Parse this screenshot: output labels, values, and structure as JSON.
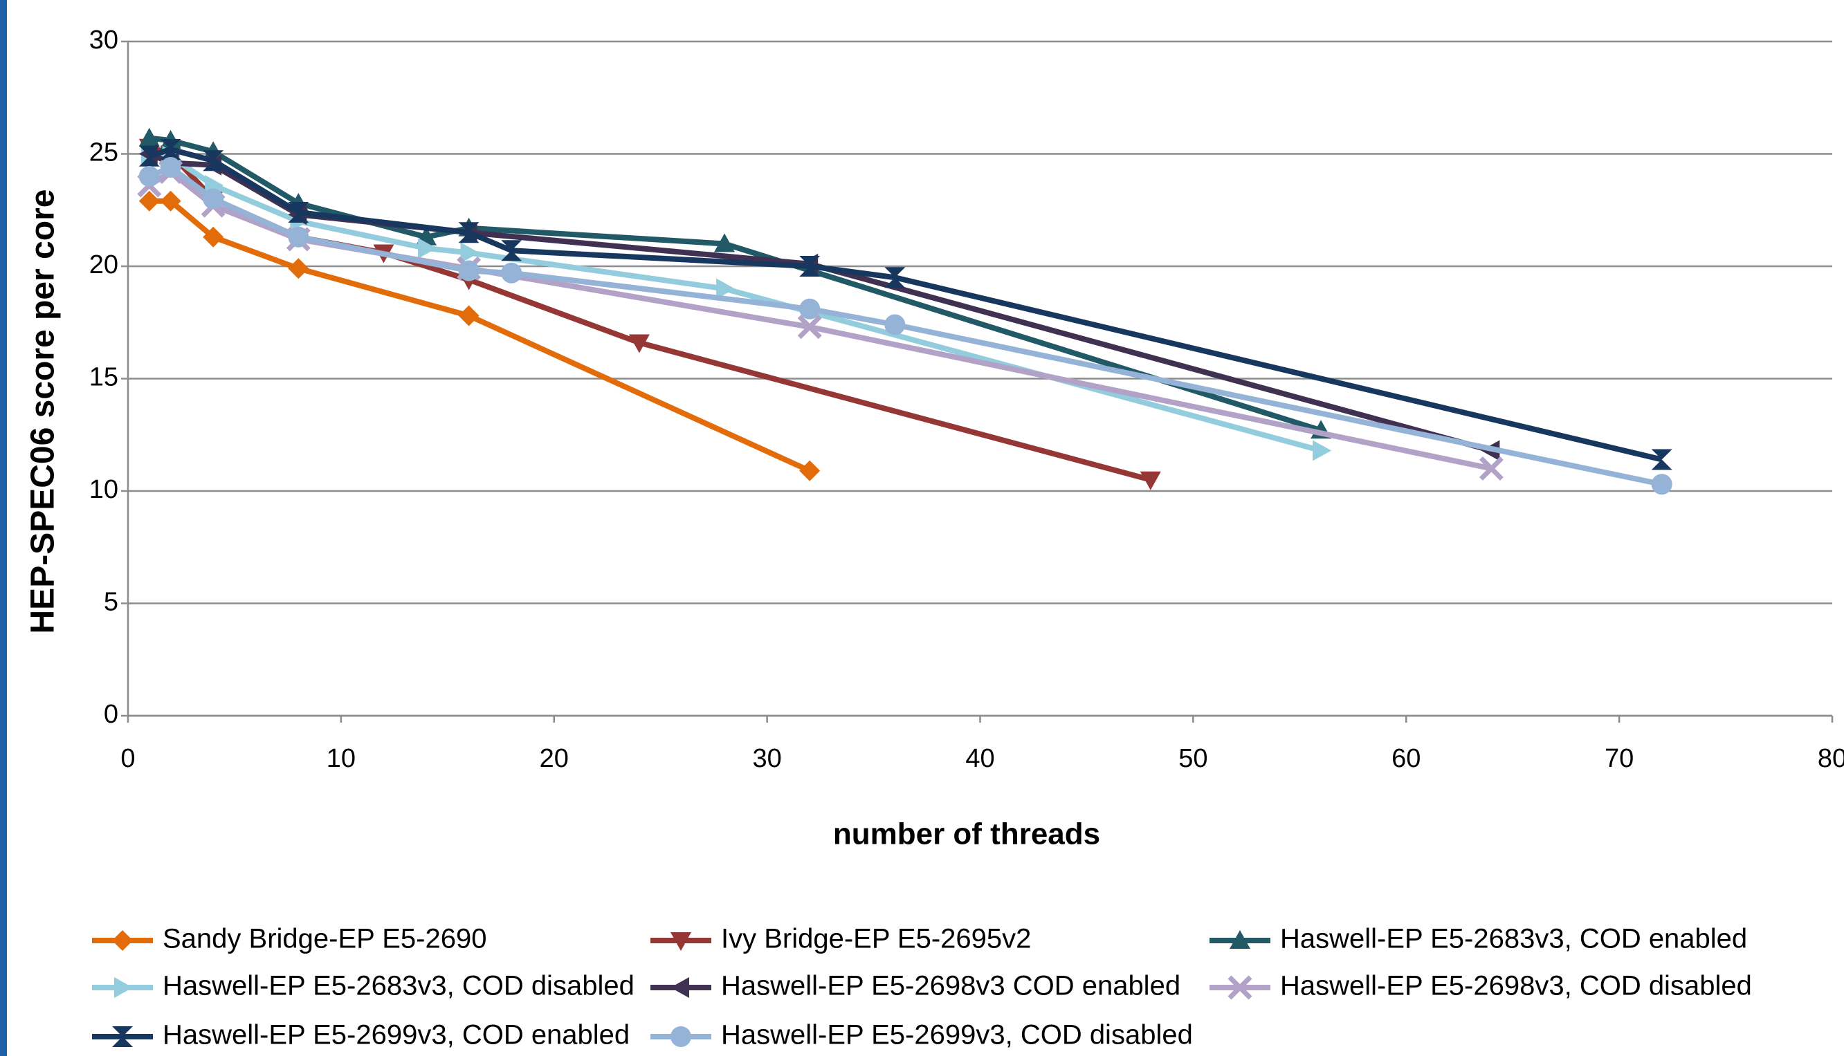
{
  "chart_data": {
    "type": "line",
    "xlabel": "number of threads",
    "ylabel": "HEP-SPEC06 score per core",
    "xlim": [
      0,
      80
    ],
    "xticks": [
      0,
      10,
      20,
      30,
      40,
      50,
      60,
      70,
      80
    ],
    "ylim": [
      0,
      30
    ],
    "yticks": [
      0,
      5,
      10,
      15,
      20,
      25,
      30
    ],
    "grid": true,
    "legend": "bottom",
    "series": [
      {
        "name": "Sandy Bridge-EP E5-2690",
        "color": "#e36c0a",
        "marker": "diamond",
        "x": [
          1,
          2,
          4,
          8,
          16,
          32
        ],
        "values": [
          22.9,
          22.9,
          21.3,
          19.9,
          17.8,
          10.9
        ]
      },
      {
        "name": "Ivy Bridge-EP E5-2695v2",
        "color": "#953735",
        "marker": "triangle-down",
        "x": [
          1,
          2,
          4,
          8,
          12,
          16,
          24,
          48
        ],
        "values": [
          25.3,
          25.0,
          23.0,
          21.3,
          20.6,
          19.4,
          16.6,
          10.5
        ]
      },
      {
        "name": "Haswell-EP E5-2683v3, COD enabled",
        "color": "#215967",
        "marker": "triangle-up",
        "x": [
          1,
          2,
          4,
          8,
          14,
          16,
          28,
          56
        ],
        "values": [
          25.7,
          25.6,
          25.1,
          22.8,
          21.3,
          21.7,
          21.0,
          12.7
        ]
      },
      {
        "name": "Haswell-EP E5-2683v3, COD disabled",
        "color": "#93cddd",
        "marker": "triangle-right",
        "x": [
          1,
          2,
          4,
          8,
          14,
          16,
          28,
          56
        ],
        "values": [
          24.9,
          24.9,
          23.6,
          22.0,
          20.8,
          20.6,
          19.0,
          11.8
        ]
      },
      {
        "name": "Haswell-EP E5-2698v3 COD enabled",
        "color": "#403152",
        "marker": "triangle-left",
        "x": [
          1,
          2,
          4,
          8,
          16,
          32,
          64
        ],
        "values": [
          25.0,
          24.6,
          24.5,
          22.3,
          21.5,
          20.1,
          11.8
        ]
      },
      {
        "name": "Haswell-EP E5-2698v3, COD disabled",
        "color": "#b3a2c7",
        "marker": "x",
        "x": [
          1,
          2,
          4,
          8,
          16,
          32,
          64
        ],
        "values": [
          23.6,
          24.2,
          22.7,
          21.2,
          19.9,
          17.3,
          11.0
        ]
      },
      {
        "name": "Haswell-EP E5-2699v3, COD enabled",
        "color": "#17375e",
        "marker": "bowtie",
        "x": [
          1,
          2,
          4,
          8,
          16,
          18,
          32,
          36,
          72
        ],
        "values": [
          24.9,
          25.2,
          24.7,
          22.4,
          21.5,
          20.7,
          20.0,
          19.5,
          11.4
        ]
      },
      {
        "name": "Haswell-EP E5-2699v3, COD disabled",
        "color": "#95b3d7",
        "marker": "circle",
        "x": [
          1,
          2,
          4,
          8,
          16,
          18,
          32,
          36,
          72
        ],
        "values": [
          24.0,
          24.4,
          23.0,
          21.3,
          19.8,
          19.7,
          18.1,
          17.4,
          10.3
        ]
      }
    ]
  }
}
